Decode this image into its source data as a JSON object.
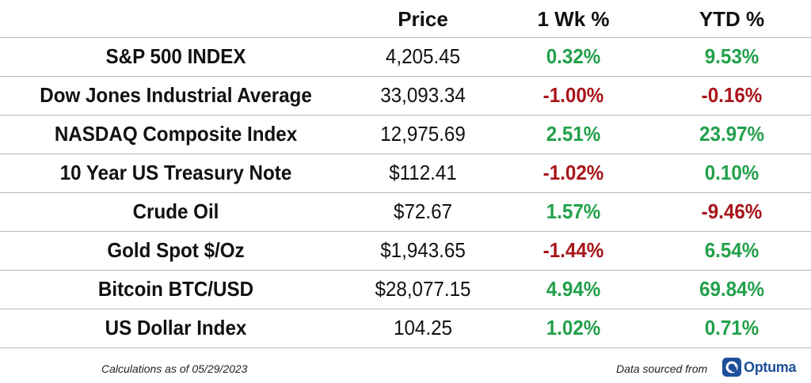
{
  "header": {
    "name_label": "",
    "price_label": "Price",
    "week_label": "1 Wk %",
    "ytd_label": "YTD %"
  },
  "rows": [
    {
      "name": "S&P 500 INDEX",
      "price": "4,205.45",
      "week": "0.32%",
      "ytd": "9.53%"
    },
    {
      "name": "Dow Jones Industrial Average",
      "price": "33,093.34",
      "week": "-1.00%",
      "ytd": "-0.16%"
    },
    {
      "name": "NASDAQ Composite Index",
      "price": "12,975.69",
      "week": "2.51%",
      "ytd": "23.97%"
    },
    {
      "name": "10 Year US Treasury Note",
      "price": "$112.41",
      "week": "-1.02%",
      "ytd": "0.10%"
    },
    {
      "name": "Crude Oil",
      "price": "$72.67",
      "week": "1.57%",
      "ytd": "-9.46%"
    },
    {
      "name": "Gold Spot $/Oz",
      "price": "$1,943.65",
      "week": "-1.44%",
      "ytd": "6.54%"
    },
    {
      "name": "Bitcoin BTC/USD",
      "price": "$28,077.15",
      "week": "4.94%",
      "ytd": "69.84%"
    },
    {
      "name": "US Dollar Index",
      "price": "104.25",
      "week": "1.02%",
      "ytd": "0.71%"
    }
  ],
  "footer": {
    "note": "Calculations as of 05/29/2023",
    "source": "Data sourced from",
    "logo_text": "Optuma"
  },
  "colors": {
    "positive": "#22a04b",
    "negative": "#a8151a",
    "brand": "#1e4f9b"
  }
}
